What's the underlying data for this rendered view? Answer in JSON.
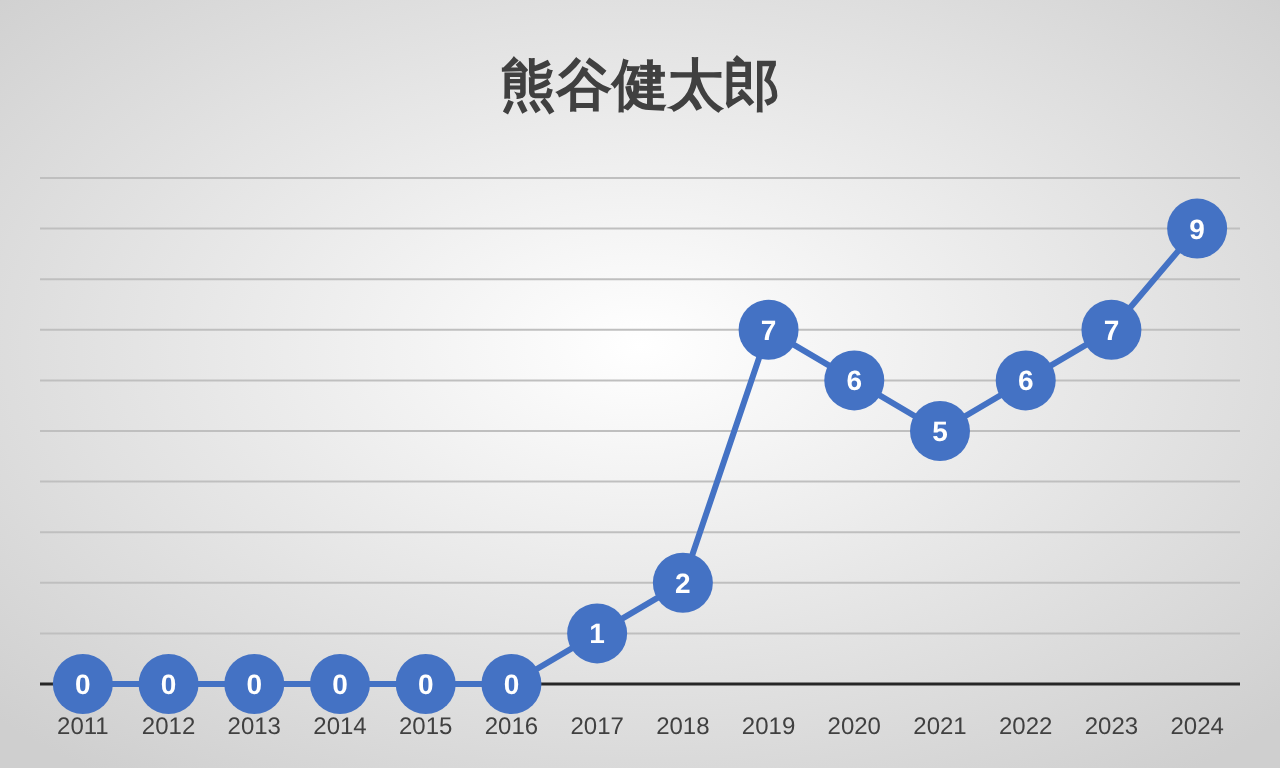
{
  "chart_data": {
    "type": "line",
    "title": "熊谷健太郎",
    "categories": [
      "2011",
      "2012",
      "2013",
      "2014",
      "2015",
      "2016",
      "2017",
      "2018",
      "2019",
      "2020",
      "2021",
      "2022",
      "2023",
      "2024"
    ],
    "values": [
      0,
      0,
      0,
      0,
      0,
      0,
      1,
      2,
      7,
      6,
      5,
      6,
      7,
      9
    ],
    "color": "#4472c4",
    "ylim": [
      0,
      10
    ],
    "yticks": [
      {
        "value": 0,
        "label": null
      },
      {
        "value": 1,
        "label": null
      },
      {
        "value": 2,
        "label": null
      },
      {
        "value": 3,
        "label": null
      },
      {
        "value": 4,
        "label": null
      },
      {
        "value": 5,
        "label": null
      },
      {
        "value": 6,
        "label": null
      },
      {
        "value": 7,
        "label": null
      },
      {
        "value": 8,
        "label": null
      },
      {
        "value": 9,
        "label": null
      },
      {
        "value": 10,
        "label": null
      }
    ],
    "grid": "y",
    "tick_labels": "x",
    "marker": "circle",
    "data_labels": true
  }
}
